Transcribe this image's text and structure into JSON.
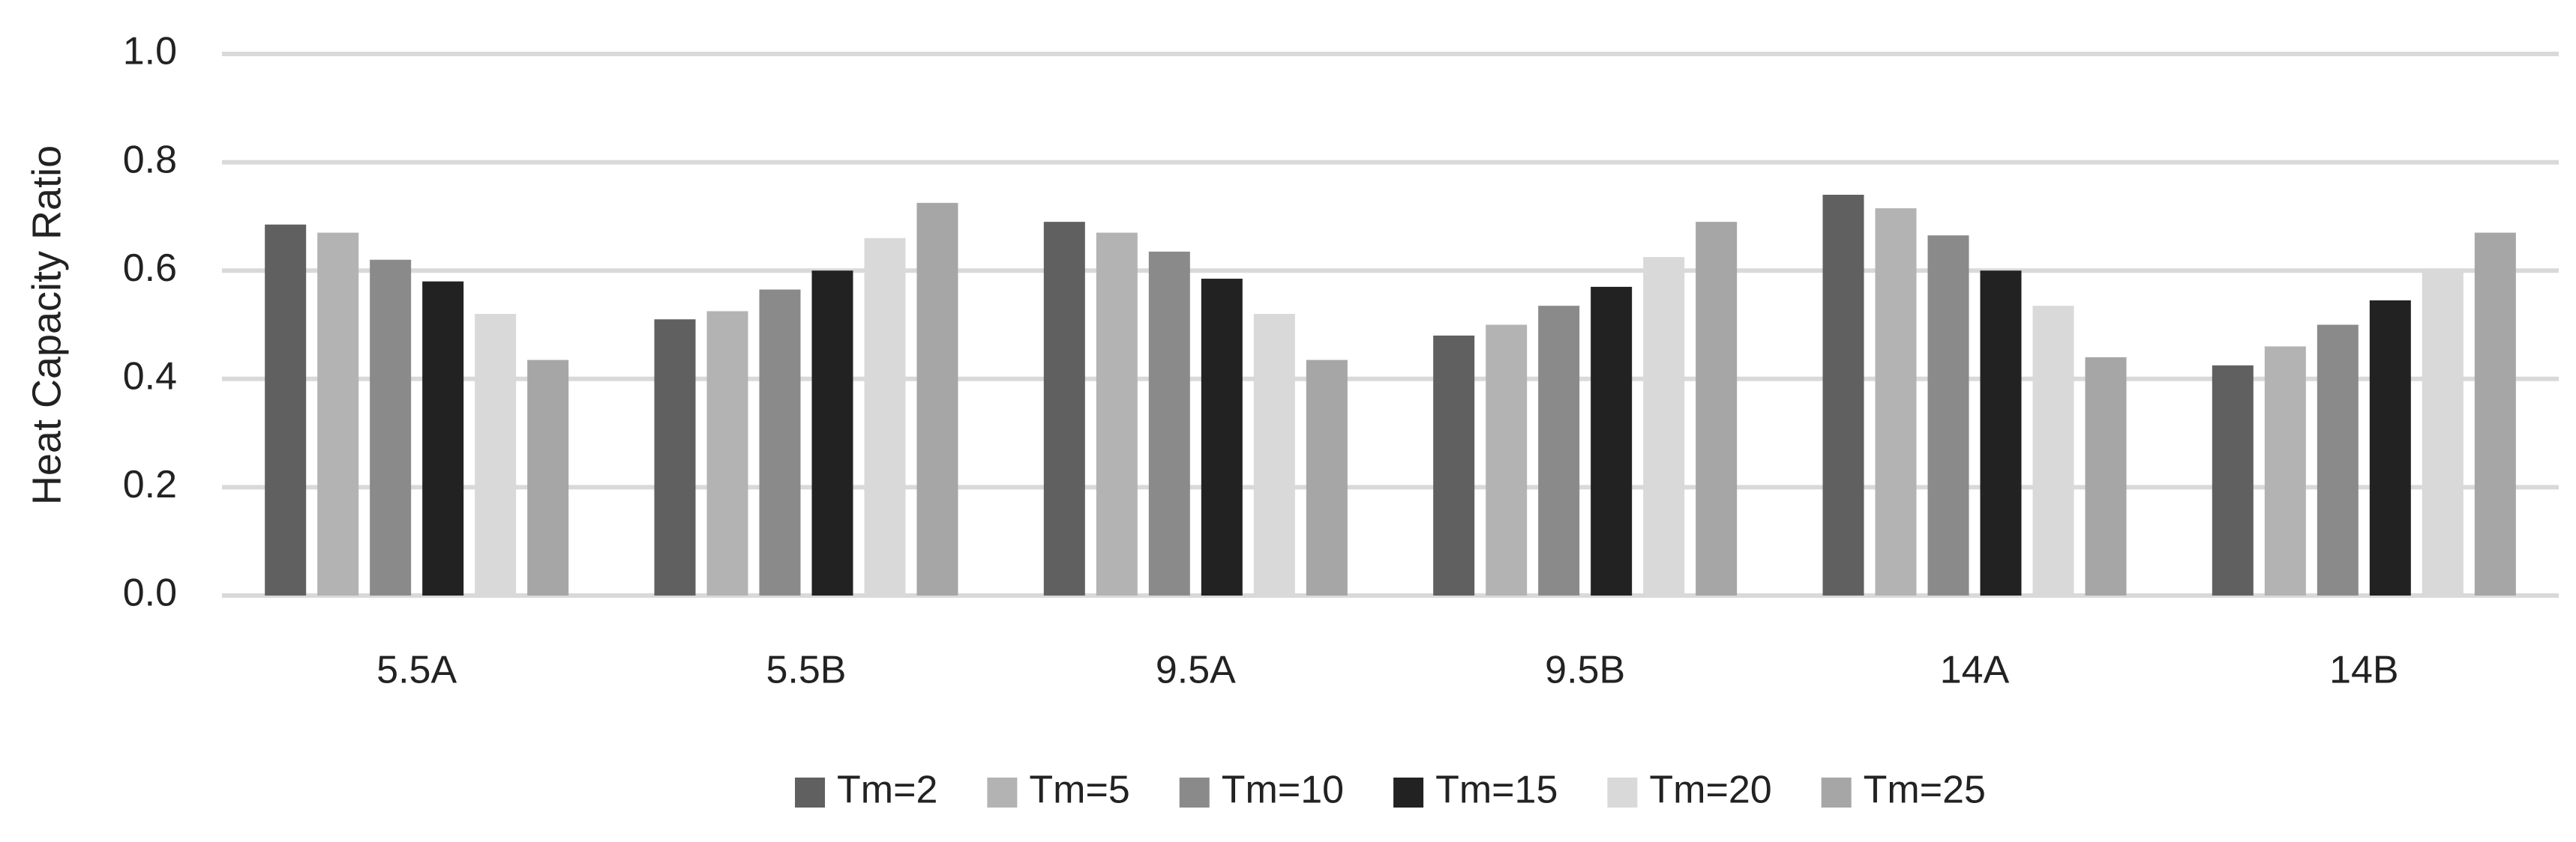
{
  "chart_data": {
    "type": "bar",
    "y_label": "Heat Capacity Ratio",
    "categories": [
      "5.5A",
      "5.5B",
      "9.5A",
      "9.5B",
      "14A",
      "14B"
    ],
    "series": [
      {
        "name": "Tm=2",
        "color": "#606060",
        "values": [
          0.685,
          0.51,
          0.69,
          0.48,
          0.74,
          0.425
        ]
      },
      {
        "name": "Tm=5",
        "color": "#b3b3b3",
        "values": [
          0.67,
          0.525,
          0.67,
          0.5,
          0.715,
          0.46
        ]
      },
      {
        "name": "Tm=10",
        "color": "#8a8a8a",
        "values": [
          0.62,
          0.565,
          0.635,
          0.535,
          0.665,
          0.5
        ]
      },
      {
        "name": "Tm=15",
        "color": "#222222",
        "values": [
          0.58,
          0.6,
          0.585,
          0.57,
          0.6,
          0.545
        ]
      },
      {
        "name": "Tm=20",
        "color": "#d9d9d9",
        "values": [
          0.52,
          0.66,
          0.52,
          0.625,
          0.535,
          0.6
        ]
      },
      {
        "name": "Tm=25",
        "color": "#a6a6a6",
        "values": [
          0.435,
          0.725,
          0.435,
          0.69,
          0.44,
          0.67
        ]
      }
    ],
    "ylim": [
      0,
      1
    ],
    "yticks": [
      {
        "value": 0,
        "label": "0.0"
      },
      {
        "value": 0.2,
        "label": "0.2"
      },
      {
        "value": 0.4,
        "label": "0.4"
      },
      {
        "value": 0.6,
        "label": "0.6"
      },
      {
        "value": 0.8,
        "label": "0.8"
      },
      {
        "value": 1,
        "label": "1.0"
      }
    ],
    "grid": true,
    "legend": "bottom"
  }
}
